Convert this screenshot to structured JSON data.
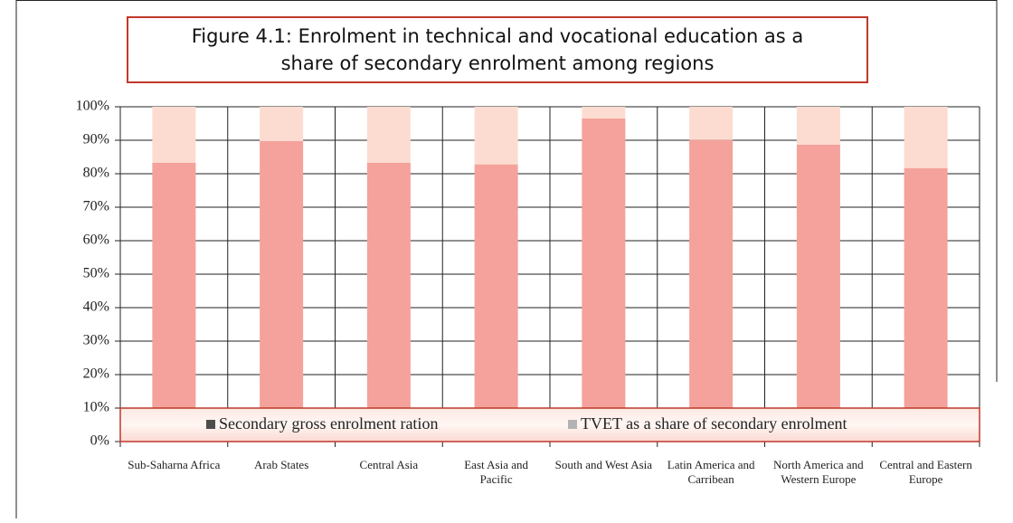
{
  "chart_data": {
    "type": "stacked_bar",
    "title": "Figure 4.1: Enrolment in technical and vocational education as a share of secondary enrolment among regions",
    "categories": [
      "Sub-Saharna Africa",
      "Arab States",
      "Central Asia",
      "East Asia and Pacific",
      "South and West Asia",
      "Latin America and Carribean",
      "North America and Western Europe",
      "Central and Eastern Europe"
    ],
    "series": [
      {
        "name": "Secondary gross enrolment ration",
        "color": "#f4a29b",
        "legend_color": "#4d4d4d",
        "values": [
          83.3,
          89.8,
          83.3,
          82.8,
          96.5,
          90.1,
          88.7,
          81.7
        ]
      },
      {
        "name": "TVET as a share of secondary enrolment",
        "color": "#fcdcd1",
        "legend_color": "#b3b3b3",
        "values": [
          16.7,
          10.2,
          16.7,
          17.2,
          3.5,
          9.9,
          11.3,
          18.3
        ]
      }
    ],
    "ylim": [
      0,
      100
    ],
    "yticks": [
      {
        "value": 0,
        "label": "0%"
      },
      {
        "value": 10,
        "label": "10%"
      },
      {
        "value": 20,
        "label": "20%"
      },
      {
        "value": 30,
        "label": "30%"
      },
      {
        "value": 40,
        "label": "40%"
      },
      {
        "value": 50,
        "label": "50%"
      },
      {
        "value": 60,
        "label": "60%"
      },
      {
        "value": 70,
        "label": "70%"
      },
      {
        "value": 80,
        "label": "80%"
      },
      {
        "value": 90,
        "label": "90%"
      },
      {
        "value": 100,
        "label": "100%"
      }
    ],
    "grid": true
  }
}
